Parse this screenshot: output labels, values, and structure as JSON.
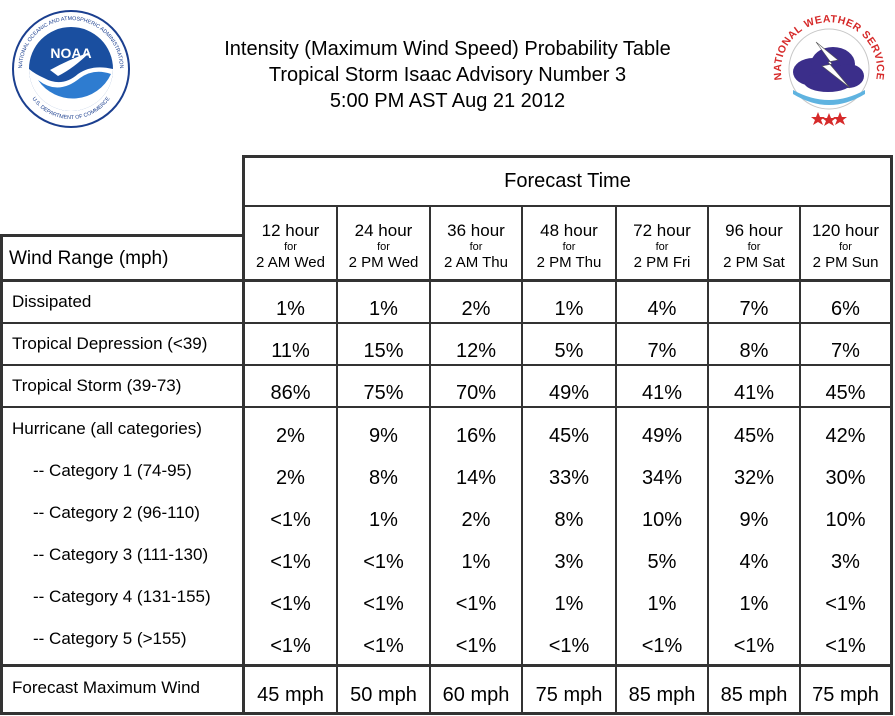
{
  "header": {
    "title_line1": "Intensity (Maximum Wind Speed) Probability Table",
    "title_line2": "Tropical Storm Isaac Advisory Number 3",
    "title_line3": "5:00 PM AST Aug 21 2012"
  },
  "logos": {
    "noaa": {
      "text": "NOAA",
      "ring_text": "NATIONAL OCEANIC AND ATMOSPHERIC ADMINISTRATION · U.S. DEPARTMENT OF COMMERCE"
    },
    "nws": {
      "ring_text": "NATIONAL WEATHER SERVICE"
    }
  },
  "table": {
    "forecast_time_label": "Forecast Time",
    "row_header_label": "Wind Range (mph)",
    "for_label": "for",
    "columns": [
      {
        "hours": "12 hour",
        "when": "2 AM Wed"
      },
      {
        "hours": "24 hour",
        "when": "2 PM Wed"
      },
      {
        "hours": "36 hour",
        "when": "2 AM Thu"
      },
      {
        "hours": "48 hour",
        "when": "2 PM Thu"
      },
      {
        "hours": "72 hour",
        "when": "2 PM Fri"
      },
      {
        "hours": "96 hour",
        "when": "2 PM Sat"
      },
      {
        "hours": "120 hour",
        "when": "2 PM Sun"
      }
    ],
    "rows": [
      {
        "label": "Dissipated",
        "values": [
          "1%",
          "1%",
          "2%",
          "1%",
          "4%",
          "7%",
          "6%"
        ]
      },
      {
        "label": "Tropical Depression (<39)",
        "values": [
          "11%",
          "15%",
          "12%",
          "5%",
          "7%",
          "8%",
          "7%"
        ]
      },
      {
        "label": "Tropical Storm (39-73)",
        "values": [
          "86%",
          "75%",
          "70%",
          "49%",
          "41%",
          "41%",
          "45%"
        ]
      },
      {
        "label": "Hurricane (all categories)",
        "values": [
          "2%",
          "9%",
          "16%",
          "45%",
          "49%",
          "45%",
          "42%"
        ]
      },
      {
        "label": "-- Category 1 (74-95)",
        "values": [
          "2%",
          "8%",
          "14%",
          "33%",
          "34%",
          "32%",
          "30%"
        ]
      },
      {
        "label": "-- Category 2 (96-110)",
        "values": [
          "<1%",
          "1%",
          "2%",
          "8%",
          "10%",
          "9%",
          "10%"
        ]
      },
      {
        "label": "-- Category 3 (111-130)",
        "values": [
          "<1%",
          "<1%",
          "1%",
          "3%",
          "5%",
          "4%",
          "3%"
        ]
      },
      {
        "label": "-- Category 4 (131-155)",
        "values": [
          "<1%",
          "<1%",
          "<1%",
          "1%",
          "1%",
          "1%",
          "<1%"
        ]
      },
      {
        "label": "-- Category 5 (>155)",
        "values": [
          "<1%",
          "<1%",
          "<1%",
          "<1%",
          "<1%",
          "<1%",
          "<1%"
        ]
      }
    ],
    "max_wind": {
      "label": "Forecast Maximum Wind",
      "values": [
        "45 mph",
        "50 mph",
        "60 mph",
        "75 mph",
        "85 mph",
        "85 mph",
        "75 mph"
      ]
    }
  }
}
